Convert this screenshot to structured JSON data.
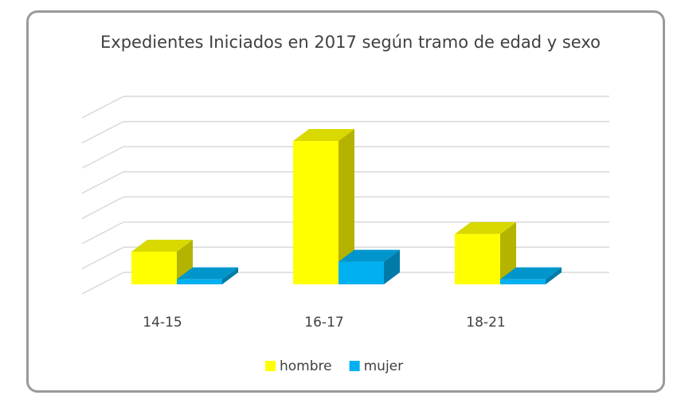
{
  "chart_data": {
    "type": "bar3d",
    "title": "Expedientes Iniciados en 2017 según tramo de edad y sexo",
    "categories": [
      "14-15",
      "16-17",
      "18-21"
    ],
    "series": [
      {
        "name": "hombre",
        "color": "#ffff00",
        "values": [
          1.3,
          5.7,
          2.0
        ]
      },
      {
        "name": "mujer",
        "color": "#00b0f0",
        "values": [
          0.2,
          0.9,
          0.2
        ]
      }
    ],
    "ylim": [
      0,
      7
    ],
    "yticks": [
      0,
      1,
      2,
      3,
      4,
      5,
      6,
      7
    ],
    "grid": true,
    "legend": "bottom"
  }
}
